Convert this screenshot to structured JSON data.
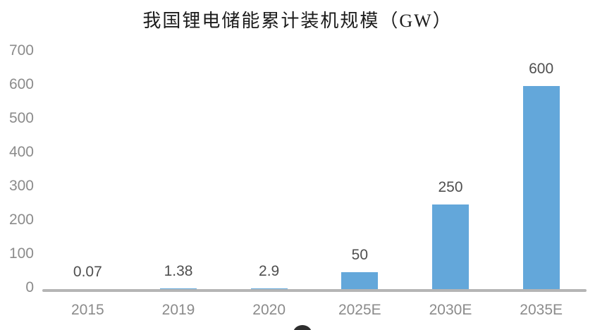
{
  "chart_data": {
    "type": "bar",
    "title": "我国锂电储能累计装机规模（GW）",
    "categories": [
      "2015",
      "2019",
      "2020",
      "2025E",
      "2030E",
      "2035E"
    ],
    "values": [
      0.07,
      1.38,
      2.9,
      50,
      250,
      600
    ],
    "value_labels": [
      "0.07",
      "1.38",
      "2.9",
      "50",
      "250",
      "600"
    ],
    "y_ticks": [
      0,
      100,
      200,
      300,
      400,
      500,
      600,
      700
    ],
    "y_tick_labels": [
      "0",
      "100",
      "200",
      "300",
      "400",
      "500",
      "600",
      "700"
    ],
    "ylim": [
      0,
      700
    ],
    "xlabel": "",
    "ylabel": "",
    "grid": false,
    "legend_position": "none",
    "bar_color": "#63a7da",
    "axis_line_color": "#b5b5b5",
    "tick_label_color": "#8b8b8b",
    "value_label_color": "#4f4f4f",
    "title_color": "#1c1c1c",
    "background_color": "#ffffff"
  }
}
